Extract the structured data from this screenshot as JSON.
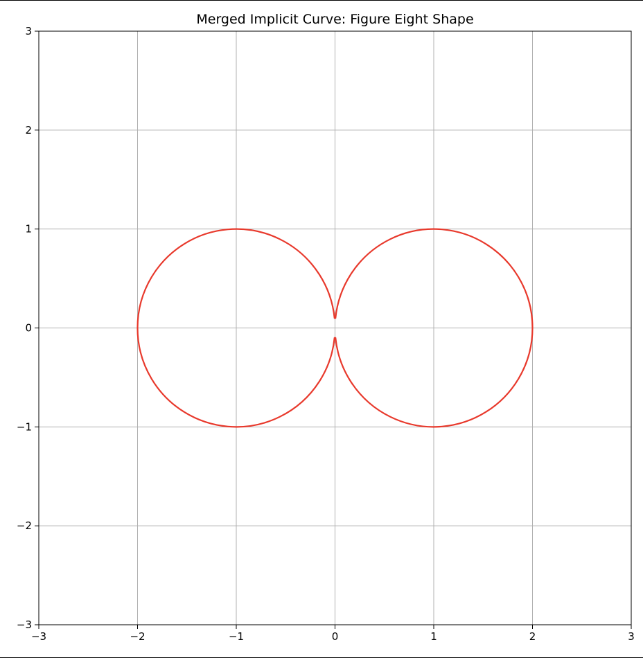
{
  "chart_data": {
    "type": "line",
    "title": "Merged Implicit Curve: Figure Eight Shape",
    "xlabel": "",
    "ylabel": "",
    "xlim": [
      -3,
      3
    ],
    "ylim": [
      -3,
      3
    ],
    "x_ticks": [
      -3,
      -2,
      -1,
      0,
      1,
      2,
      3
    ],
    "y_ticks": [
      -3,
      -2,
      -1,
      0,
      1,
      2,
      3
    ],
    "x_tick_labels": [
      "−3",
      "−2",
      "−1",
      "0",
      "1",
      "2",
      "3"
    ],
    "y_tick_labels": [
      "−3",
      "−2",
      "−1",
      "0",
      "1",
      "2",
      "3"
    ],
    "grid": true,
    "line_color": "#e8392c",
    "grid_color": "#b0b0b0",
    "series": [
      {
        "center": [
          -1,
          0
        ],
        "radius": 1,
        "gap_y": 0.1
      },
      {
        "center": [
          1,
          0
        ],
        "radius": 1,
        "gap_y": 0.1
      }
    ]
  }
}
